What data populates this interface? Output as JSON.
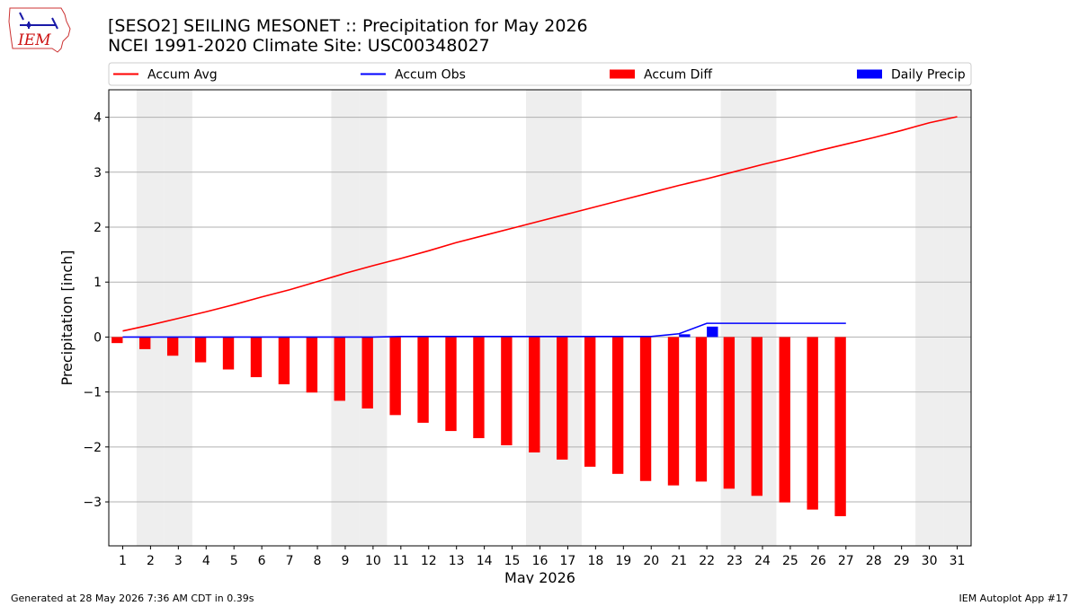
{
  "header": {
    "title": "[SESO2] SEILING MESONET :: Precipitation for May 2026",
    "subtitle": "NCEI 1991-2020 Climate Site: USC00348027",
    "logo_text": "IEM"
  },
  "footer": {
    "left": "Generated at 28 May 2026 7:36 AM CDT in 0.39s",
    "right": "IEM Autoplot App #17"
  },
  "colors": {
    "avg": "#ff0000",
    "obs": "#0000ff",
    "diff": "#ff0000",
    "daily": "#0000ff",
    "weekend": "#eeeeee",
    "grid": "#b0b0b0"
  },
  "chart_data": {
    "type": "bar",
    "xlabel": "May 2026",
    "ylabel": "Precipitation [inch]",
    "xlim": [
      0.5,
      31.5
    ],
    "ylim": [
      -3.8,
      4.5
    ],
    "yticks": [
      -3,
      -2,
      -1,
      0,
      1,
      2,
      3,
      4
    ],
    "ytick_labels": [
      "−3",
      "−2",
      "−1",
      "0",
      "1",
      "2",
      "3",
      "4"
    ],
    "days": [
      1,
      2,
      3,
      4,
      5,
      6,
      7,
      8,
      9,
      10,
      11,
      12,
      13,
      14,
      15,
      16,
      17,
      18,
      19,
      20,
      21,
      22,
      23,
      24,
      25,
      26,
      27,
      28,
      29,
      30,
      31
    ],
    "day_labels": [
      "1",
      "2",
      "3",
      "4",
      "5",
      "6",
      "7",
      "8",
      "9",
      "10",
      "11",
      "12",
      "13",
      "14",
      "15",
      "16",
      "17",
      "18",
      "19",
      "20",
      "21",
      "22",
      "23",
      "24",
      "25",
      "26",
      "27",
      "28",
      "29",
      "30",
      "31"
    ],
    "weekend_days": [
      2,
      3,
      9,
      10,
      16,
      17,
      23,
      24,
      30,
      31
    ],
    "grid": true,
    "legend_position": "top",
    "legend": [
      "Accum Avg",
      "Accum Obs",
      "Accum Diff",
      "Daily Precip"
    ],
    "series": [
      {
        "name": "Accum Avg",
        "kind": "line",
        "values": [
          0.11,
          0.22,
          0.34,
          0.46,
          0.59,
          0.73,
          0.86,
          1.01,
          1.16,
          1.3,
          1.43,
          1.57,
          1.72,
          1.85,
          1.98,
          2.11,
          2.24,
          2.37,
          2.5,
          2.63,
          2.76,
          2.88,
          3.01,
          3.14,
          3.26,
          3.39,
          3.51,
          3.63,
          3.76,
          3.9,
          4.01
        ]
      },
      {
        "name": "Accum Obs",
        "kind": "line",
        "values": [
          0.0,
          0.0,
          0.0,
          0.0,
          0.0,
          0.0,
          0.0,
          0.0,
          0.0,
          0.0,
          0.01,
          0.01,
          0.01,
          0.01,
          0.01,
          0.01,
          0.01,
          0.01,
          0.01,
          0.01,
          0.06,
          0.25,
          0.25,
          0.25,
          0.25,
          0.25,
          0.25
        ]
      },
      {
        "name": "Accum Diff",
        "kind": "bar",
        "values": [
          -0.11,
          -0.22,
          -0.34,
          -0.46,
          -0.59,
          -0.73,
          -0.86,
          -1.01,
          -1.16,
          -1.3,
          -1.42,
          -1.56,
          -1.71,
          -1.84,
          -1.97,
          -2.1,
          -2.23,
          -2.36,
          -2.49,
          -2.62,
          -2.7,
          -2.63,
          -2.76,
          -2.89,
          -3.01,
          -3.14,
          -3.26
        ]
      },
      {
        "name": "Daily Precip",
        "kind": "bar",
        "values": [
          0,
          0,
          0,
          0,
          0,
          0,
          0,
          0,
          0,
          0,
          0.01,
          0,
          0,
          0,
          0,
          0,
          0,
          0,
          0,
          0,
          0.05,
          0.19,
          0,
          0,
          0,
          0,
          0
        ]
      }
    ]
  }
}
